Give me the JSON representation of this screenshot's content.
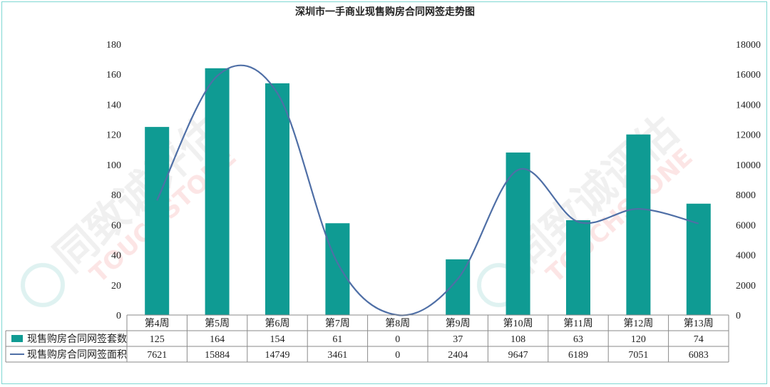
{
  "title": "深圳市一手商业现售购房合同网签走势图",
  "colors": {
    "bar": "#0f9b93",
    "line": "#4f6fa6",
    "grid_border": "#888888"
  },
  "watermark": {
    "brand_text": "同致诚评估",
    "brand_en": "TOUCHSTONE"
  },
  "chart_data": {
    "type": "bar",
    "title": "深圳市一手商业现售购房合同网签走势图",
    "categories": [
      "第4周",
      "第5周",
      "第6周",
      "第7周",
      "第8周",
      "第9周",
      "第10周",
      "第11周",
      "第12周",
      "第13周"
    ],
    "series": [
      {
        "name": "现售购房合同网签套数",
        "type": "bar",
        "axis": "left",
        "values": [
          125,
          164,
          154,
          61,
          0,
          37,
          108,
          63,
          120,
          74
        ]
      },
      {
        "name": "现售购房合同网签面积",
        "type": "line",
        "axis": "right",
        "values": [
          7621,
          15884,
          14749,
          3461,
          0,
          2404,
          9647,
          6189,
          7051,
          6083
        ]
      }
    ],
    "left_axis": {
      "ylim": [
        0,
        180
      ],
      "ticks": [
        "0",
        "20",
        "40",
        "60",
        "80",
        "100",
        "120",
        "140",
        "160",
        "180"
      ]
    },
    "right_axis": {
      "ylim": [
        0,
        18000
      ],
      "ticks": [
        "0",
        "2000",
        "4000",
        "6000",
        "8000",
        "10000",
        "12000",
        "14000",
        "16000",
        "18000"
      ]
    },
    "grid": false,
    "legend": "data-table"
  }
}
